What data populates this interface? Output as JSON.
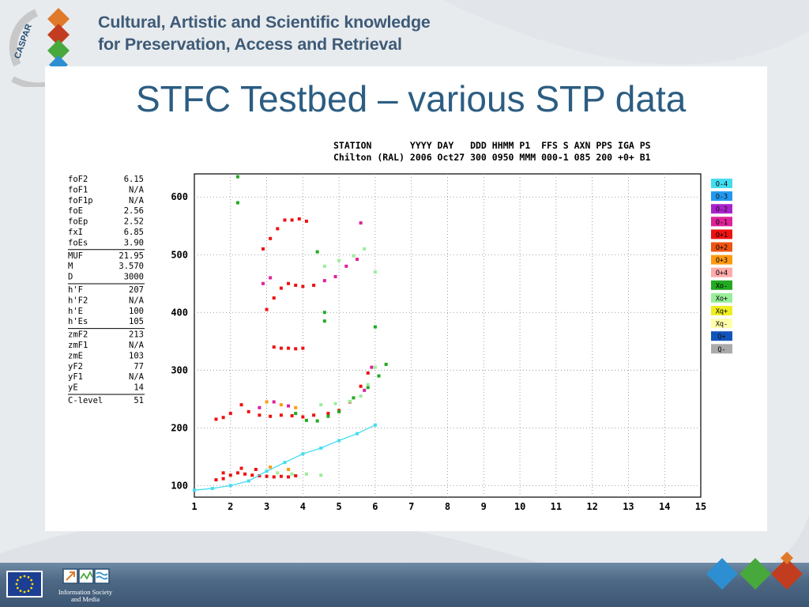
{
  "header": {
    "logo_text": "CASPAR",
    "title_line1": "Cultural, Artistic and Scientific knowledge",
    "title_line2": "for Preservation, Access and Retrieval"
  },
  "slide": {
    "title": "STFC Testbed – various STP data"
  },
  "ionogram": {
    "station_header": "STATION       YYYY DAY   DDD HHMM P1  FFS S AXN PPS IGA PS",
    "station_values": "Chilton (RAL) 2006 Oct27 300 0950 MMM 000-1 085 200 +0+ B1",
    "param_groups": [
      [
        {
          "name": "foF2",
          "value": "6.15"
        },
        {
          "name": "foF1",
          "value": "N/A"
        },
        {
          "name": "foF1p",
          "value": "N/A"
        },
        {
          "name": "foE",
          "value": "2.56"
        },
        {
          "name": "foEp",
          "value": "2.52"
        },
        {
          "name": "fxI",
          "value": "6.85"
        },
        {
          "name": "foEs",
          "value": "3.90"
        }
      ],
      [
        {
          "name": "MUF",
          "value": "21.95"
        },
        {
          "name": "M",
          "value": "3.570"
        },
        {
          "name": "D",
          "value": "3000"
        }
      ],
      [
        {
          "name": "h'F",
          "value": "207"
        },
        {
          "name": "h'F2",
          "value": "N/A"
        },
        {
          "name": "h'E",
          "value": "100"
        },
        {
          "name": "h'Es",
          "value": "105"
        }
      ],
      [
        {
          "name": "zmF2",
          "value": "213"
        },
        {
          "name": "zmF1",
          "value": "N/A"
        },
        {
          "name": "zmE",
          "value": "103"
        },
        {
          "name": "yF2",
          "value": "77"
        },
        {
          "name": "yF1",
          "value": "N/A"
        },
        {
          "name": "yE",
          "value": "14"
        }
      ],
      [
        {
          "name": "C-level",
          "value": "51"
        }
      ]
    ],
    "legend": [
      {
        "label": "O-4",
        "color": "#44ddf0"
      },
      {
        "label": "O-3",
        "color": "#2299ee"
      },
      {
        "label": "O-2",
        "color": "#aa22cc"
      },
      {
        "label": "O-1",
        "color": "#dd2299"
      },
      {
        "label": "O+1",
        "color": "#ee1111"
      },
      {
        "label": "O+2",
        "color": "#ee5511"
      },
      {
        "label": "O+3",
        "color": "#ff9911"
      },
      {
        "label": "O+4",
        "color": "#ffaaaa"
      },
      {
        "label": "Xo-",
        "color": "#22aa22"
      },
      {
        "label": "Xo+",
        "color": "#99ee99"
      },
      {
        "label": "Xq+",
        "color": "#eeee22"
      },
      {
        "label": "Xq-",
        "color": "#ffffaa"
      },
      {
        "label": "Q+",
        "color": "#1155bb"
      },
      {
        "label": "Q-",
        "color": "#aaaaaa"
      }
    ]
  },
  "chart_data": {
    "type": "scatter",
    "title": "",
    "xlabel": "",
    "ylabel": "",
    "xlim": [
      1,
      15
    ],
    "ylim": [
      80,
      640
    ],
    "x_ticks": [
      1,
      2,
      3,
      4,
      5,
      6,
      7,
      8,
      9,
      10,
      11,
      12,
      13,
      14,
      15
    ],
    "y_ticks": [
      100,
      200,
      300,
      400,
      500,
      600
    ],
    "grid": true,
    "legend_position": "right",
    "series": [
      {
        "name": "O+1",
        "color": "#ee1111",
        "points": [
          [
            1.6,
            110
          ],
          [
            1.8,
            112
          ],
          [
            2.0,
            118
          ],
          [
            2.2,
            122
          ],
          [
            2.4,
            120
          ],
          [
            2.6,
            118
          ],
          [
            2.8,
            117
          ],
          [
            3.0,
            116
          ],
          [
            3.2,
            115
          ],
          [
            3.4,
            116
          ],
          [
            3.6,
            115
          ],
          [
            3.8,
            117
          ],
          [
            2.3,
            130
          ],
          [
            2.7,
            128
          ],
          [
            1.8,
            122
          ],
          [
            1.6,
            215
          ],
          [
            1.8,
            218
          ],
          [
            2.0,
            225
          ],
          [
            2.3,
            240
          ],
          [
            2.5,
            228
          ],
          [
            2.8,
            222
          ],
          [
            3.1,
            220
          ],
          [
            3.4,
            222
          ],
          [
            3.7,
            221
          ],
          [
            4.0,
            219
          ],
          [
            4.3,
            222
          ],
          [
            4.7,
            225
          ],
          [
            5.0,
            230
          ],
          [
            5.3,
            245
          ],
          [
            5.6,
            272
          ],
          [
            5.8,
            295
          ],
          [
            3.2,
            340
          ],
          [
            3.4,
            338
          ],
          [
            3.6,
            338
          ],
          [
            3.8,
            337
          ],
          [
            4.0,
            338
          ],
          [
            3.0,
            405
          ],
          [
            3.2,
            425
          ],
          [
            3.4,
            442
          ],
          [
            3.6,
            450
          ],
          [
            3.8,
            447
          ],
          [
            4.0,
            445
          ],
          [
            4.3,
            447
          ],
          [
            2.9,
            510
          ],
          [
            3.1,
            528
          ],
          [
            3.3,
            545
          ],
          [
            3.5,
            560
          ],
          [
            3.7,
            560
          ],
          [
            3.9,
            562
          ],
          [
            4.1,
            558
          ]
        ]
      },
      {
        "name": "O-1",
        "color": "#dd2299",
        "points": [
          [
            2.9,
            450
          ],
          [
            3.1,
            460
          ],
          [
            4.6,
            455
          ],
          [
            4.9,
            462
          ],
          [
            5.2,
            480
          ],
          [
            5.5,
            492
          ],
          [
            5.6,
            555
          ],
          [
            2.8,
            235
          ],
          [
            3.2,
            245
          ],
          [
            3.6,
            238
          ],
          [
            5.7,
            265
          ],
          [
            5.9,
            305
          ]
        ]
      },
      {
        "name": "O+3",
        "color": "#ff9911",
        "points": [
          [
            3.0,
            245
          ],
          [
            3.4,
            240
          ],
          [
            3.8,
            235
          ],
          [
            3.1,
            132
          ],
          [
            3.6,
            128
          ]
        ]
      },
      {
        "name": "Xo-",
        "color": "#22aa22",
        "points": [
          [
            2.2,
            635
          ],
          [
            2.2,
            590
          ],
          [
            3.8,
            225
          ],
          [
            4.1,
            213
          ],
          [
            4.4,
            212
          ],
          [
            4.7,
            220
          ],
          [
            5.0,
            228
          ],
          [
            5.4,
            252
          ],
          [
            5.8,
            270
          ],
          [
            6.1,
            290
          ],
          [
            6.3,
            310
          ],
          [
            4.6,
            385
          ],
          [
            4.6,
            400
          ],
          [
            4.4,
            505
          ],
          [
            6.0,
            375
          ]
        ]
      },
      {
        "name": "Xo+",
        "color": "#99ee99",
        "points": [
          [
            3.3,
            122
          ],
          [
            3.7,
            120
          ],
          [
            4.1,
            120
          ],
          [
            4.5,
            118
          ],
          [
            4.5,
            240
          ],
          [
            4.9,
            242
          ],
          [
            5.3,
            246
          ],
          [
            5.6,
            255
          ],
          [
            5.8,
            275
          ],
          [
            6.0,
            305
          ],
          [
            4.6,
            480
          ],
          [
            5.0,
            490
          ],
          [
            5.4,
            498
          ],
          [
            5.7,
            510
          ],
          [
            6.0,
            470
          ]
        ]
      },
      {
        "name": "O-4",
        "color": "#44ddf0",
        "points": [
          [
            1.0,
            92
          ],
          [
            1.5,
            95
          ],
          [
            2.0,
            100
          ],
          [
            2.5,
            108
          ],
          [
            3.0,
            125
          ],
          [
            3.5,
            140
          ],
          [
            4.0,
            155
          ],
          [
            4.5,
            165
          ],
          [
            5.0,
            178
          ],
          [
            5.5,
            190
          ],
          [
            6.0,
            205
          ]
        ]
      }
    ]
  }
}
